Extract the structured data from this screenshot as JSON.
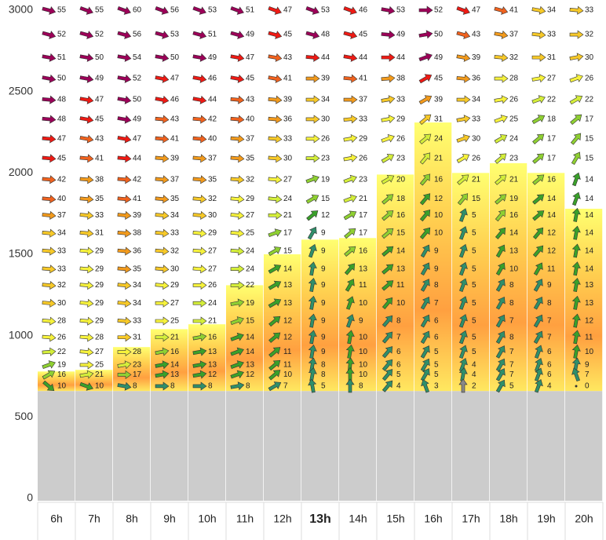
{
  "chart_data": {
    "type": "wind_grid",
    "ylim": [
      0,
      3000
    ],
    "yticks": [
      0,
      500,
      1000,
      1500,
      2000,
      2500,
      3000
    ],
    "levels": [
      3000,
      2850,
      2710,
      2580,
      2450,
      2330,
      2210,
      2090,
      1960,
      1840,
      1740,
      1630,
      1520,
      1410,
      1310,
      1200,
      1090,
      990,
      900,
      820,
      760,
      690
    ],
    "ground": 660,
    "highlight_column": 7,
    "color_scale": [
      {
        "min": 0,
        "color": "#888888"
      },
      {
        "min": 3,
        "color": "#2f8f6a"
      },
      {
        "min": 10,
        "color": "#3aa02a"
      },
      {
        "min": 15,
        "color": "#8fd032"
      },
      {
        "min": 20,
        "color": "#d4ee3a"
      },
      {
        "min": 25,
        "color": "#f6f23c"
      },
      {
        "min": 30,
        "color": "#f7c928"
      },
      {
        "min": 35,
        "color": "#f29a1c"
      },
      {
        "min": 40,
        "color": "#f0621e"
      },
      {
        "min": 44,
        "color": "#ee1a14"
      },
      {
        "min": 48,
        "color": "#9c0058"
      }
    ],
    "columns": [
      {
        "label": "6h",
        "thermal_top": 780,
        "speeds": [
          55,
          52,
          51,
          50,
          48,
          48,
          47,
          45,
          42,
          40,
          37,
          34,
          33,
          33,
          32,
          30,
          28,
          26,
          22,
          19,
          16,
          10
        ],
        "directions": [
          15,
          15,
          10,
          10,
          5,
          5,
          5,
          5,
          5,
          5,
          5,
          5,
          5,
          5,
          5,
          5,
          5,
          5,
          -5,
          -20,
          -30,
          40
        ]
      },
      {
        "label": "7h",
        "thermal_top": 790,
        "speeds": [
          55,
          52,
          50,
          49,
          47,
          45,
          43,
          41,
          38,
          35,
          33,
          31,
          29,
          29,
          29,
          29,
          29,
          28,
          27,
          25,
          21,
          10
        ],
        "directions": [
          20,
          15,
          10,
          10,
          10,
          10,
          10,
          5,
          5,
          5,
          5,
          5,
          5,
          5,
          5,
          5,
          5,
          5,
          5,
          0,
          -10,
          20
        ]
      },
      {
        "label": "8h",
        "thermal_top": 930,
        "speeds": [
          60,
          56,
          54,
          52,
          50,
          49,
          47,
          44,
          42,
          41,
          39,
          38,
          36,
          35,
          34,
          34,
          33,
          31,
          28,
          23,
          17,
          8
        ],
        "directions": [
          20,
          15,
          10,
          10,
          10,
          10,
          10,
          5,
          5,
          5,
          5,
          5,
          5,
          5,
          5,
          5,
          5,
          0,
          0,
          -10,
          0,
          10
        ]
      },
      {
        "label": "9h",
        "thermal_top": 1040,
        "speeds": [
          56,
          53,
          50,
          47,
          46,
          43,
          41,
          39,
          37,
          35,
          34,
          33,
          32,
          30,
          29,
          27,
          25,
          21,
          16,
          14,
          13,
          8
        ],
        "directions": [
          20,
          15,
          10,
          10,
          10,
          5,
          5,
          5,
          5,
          5,
          5,
          5,
          5,
          5,
          5,
          0,
          0,
          0,
          -10,
          -10,
          -10,
          0
        ]
      },
      {
        "label": "10h",
        "thermal_top": 1070,
        "speeds": [
          53,
          51,
          49,
          46,
          44,
          42,
          40,
          37,
          35,
          32,
          30,
          29,
          27,
          27,
          26,
          24,
          21,
          16,
          13,
          13,
          12,
          8
        ],
        "directions": [
          20,
          15,
          10,
          10,
          10,
          5,
          5,
          5,
          5,
          5,
          5,
          5,
          5,
          5,
          0,
          0,
          0,
          -10,
          -10,
          -10,
          -10,
          0
        ]
      },
      {
        "label": "11h",
        "thermal_top": 1310,
        "speeds": [
          51,
          49,
          47,
          45,
          43,
          40,
          37,
          35,
          32,
          29,
          27,
          25,
          24,
          24,
          22,
          19,
          15,
          14,
          14,
          13,
          12,
          8
        ],
        "directions": [
          20,
          15,
          10,
          10,
          5,
          5,
          5,
          5,
          5,
          5,
          5,
          5,
          5,
          0,
          0,
          -10,
          -20,
          -20,
          -20,
          -20,
          -20,
          -10
        ]
      },
      {
        "label": "12h",
        "thermal_top": 1500,
        "speeds": [
          47,
          45,
          43,
          41,
          39,
          36,
          33,
          30,
          27,
          24,
          21,
          17,
          15,
          14,
          13,
          13,
          12,
          12,
          11,
          11,
          10,
          7
        ],
        "directions": [
          20,
          15,
          10,
          10,
          5,
          5,
          5,
          5,
          5,
          5,
          0,
          -20,
          -30,
          -30,
          -30,
          -30,
          -40,
          -40,
          -40,
          -40,
          -40,
          -30
        ]
      },
      {
        "label": "13h",
        "thermal_top": 1590,
        "speeds": [
          53,
          48,
          44,
          39,
          34,
          30,
          26,
          23,
          19,
          15,
          12,
          9,
          9,
          9,
          9,
          9,
          9,
          9,
          9,
          8,
          8,
          5
        ],
        "directions": [
          20,
          15,
          5,
          0,
          0,
          0,
          0,
          0,
          -20,
          -30,
          -40,
          -60,
          -70,
          -80,
          -80,
          -80,
          -80,
          -80,
          -80,
          -80,
          -80,
          -100
        ]
      },
      {
        "label": "14h",
        "thermal_top": 1600,
        "speeds": [
          46,
          45,
          44,
          41,
          37,
          33,
          29,
          26,
          23,
          21,
          17,
          17,
          16,
          13,
          11,
          10,
          9,
          10,
          10,
          10,
          10,
          8
        ],
        "directions": [
          20,
          15,
          10,
          5,
          0,
          -5,
          -10,
          -10,
          -20,
          -20,
          -30,
          -40,
          -40,
          -50,
          -60,
          -70,
          -70,
          -80,
          -80,
          -85,
          -90,
          -90
        ]
      },
      {
        "label": "15h",
        "thermal_top": 1990,
        "speeds": [
          53,
          49,
          44,
          38,
          33,
          29,
          26,
          23,
          20,
          18,
          16,
          15,
          14,
          13,
          11,
          10,
          8,
          7,
          6,
          6,
          5,
          4
        ],
        "directions": [
          10,
          5,
          0,
          -5,
          -10,
          -10,
          -20,
          -30,
          -30,
          -40,
          -40,
          -40,
          -40,
          -40,
          -40,
          -50,
          -50,
          -50,
          -50,
          -50,
          -50,
          -50
        ]
      },
      {
        "label": "16h",
        "thermal_top": 2310,
        "speeds": [
          52,
          50,
          49,
          45,
          39,
          31,
          24,
          21,
          16,
          12,
          10,
          10,
          9,
          9,
          8,
          7,
          6,
          6,
          5,
          5,
          5,
          3
        ],
        "directions": [
          0,
          -10,
          -20,
          -30,
          -30,
          -40,
          -40,
          -50,
          -50,
          -50,
          -50,
          -50,
          -60,
          -60,
          -60,
          -60,
          -60,
          -60,
          -60,
          -60,
          -60,
          -110
        ]
      },
      {
        "label": "17h",
        "thermal_top": 2000,
        "speeds": [
          47,
          43,
          39,
          36,
          34,
          33,
          30,
          26,
          21,
          15,
          5,
          5,
          5,
          5,
          5,
          5,
          5,
          5,
          5,
          4,
          4,
          2
        ],
        "directions": [
          20,
          15,
          10,
          5,
          0,
          -10,
          -20,
          -30,
          -40,
          -50,
          -70,
          -70,
          -70,
          -70,
          -70,
          -70,
          -70,
          -70,
          -70,
          -70,
          -80,
          -90
        ]
      },
      {
        "label": "18h",
        "thermal_top": 2060,
        "speeds": [
          41,
          37,
          32,
          28,
          26,
          25,
          24,
          23,
          21,
          19,
          16,
          14,
          13,
          10,
          8,
          8,
          7,
          8,
          7,
          7,
          7,
          5
        ],
        "directions": [
          15,
          10,
          5,
          0,
          -10,
          -20,
          -30,
          -40,
          -40,
          -40,
          -50,
          -50,
          -60,
          -60,
          -60,
          -60,
          -60,
          -60,
          -60,
          -60,
          -60,
          -60
        ]
      },
      {
        "label": "19h",
        "thermal_top": 2000,
        "speeds": [
          34,
          33,
          31,
          27,
          22,
          18,
          17,
          17,
          16,
          14,
          14,
          12,
          12,
          11,
          9,
          8,
          7,
          7,
          6,
          6,
          6,
          4
        ],
        "directions": [
          10,
          5,
          0,
          -10,
          -20,
          -30,
          -40,
          -40,
          -40,
          -40,
          -40,
          -50,
          -50,
          -60,
          -60,
          -60,
          -60,
          -60,
          -70,
          -70,
          -70,
          -70
        ]
      },
      {
        "label": "20h",
        "thermal_top": 1780,
        "speeds": [
          33,
          32,
          30,
          26,
          22,
          17,
          15,
          15,
          14,
          14,
          14,
          14,
          14,
          14,
          13,
          13,
          12,
          11,
          10,
          9,
          7,
          0
        ],
        "directions": [
          5,
          0,
          -10,
          -20,
          -30,
          -40,
          -50,
          -60,
          -70,
          -70,
          -80,
          -80,
          -80,
          -80,
          -80,
          -80,
          -80,
          -80,
          -80,
          -80,
          -110,
          0
        ]
      }
    ]
  }
}
